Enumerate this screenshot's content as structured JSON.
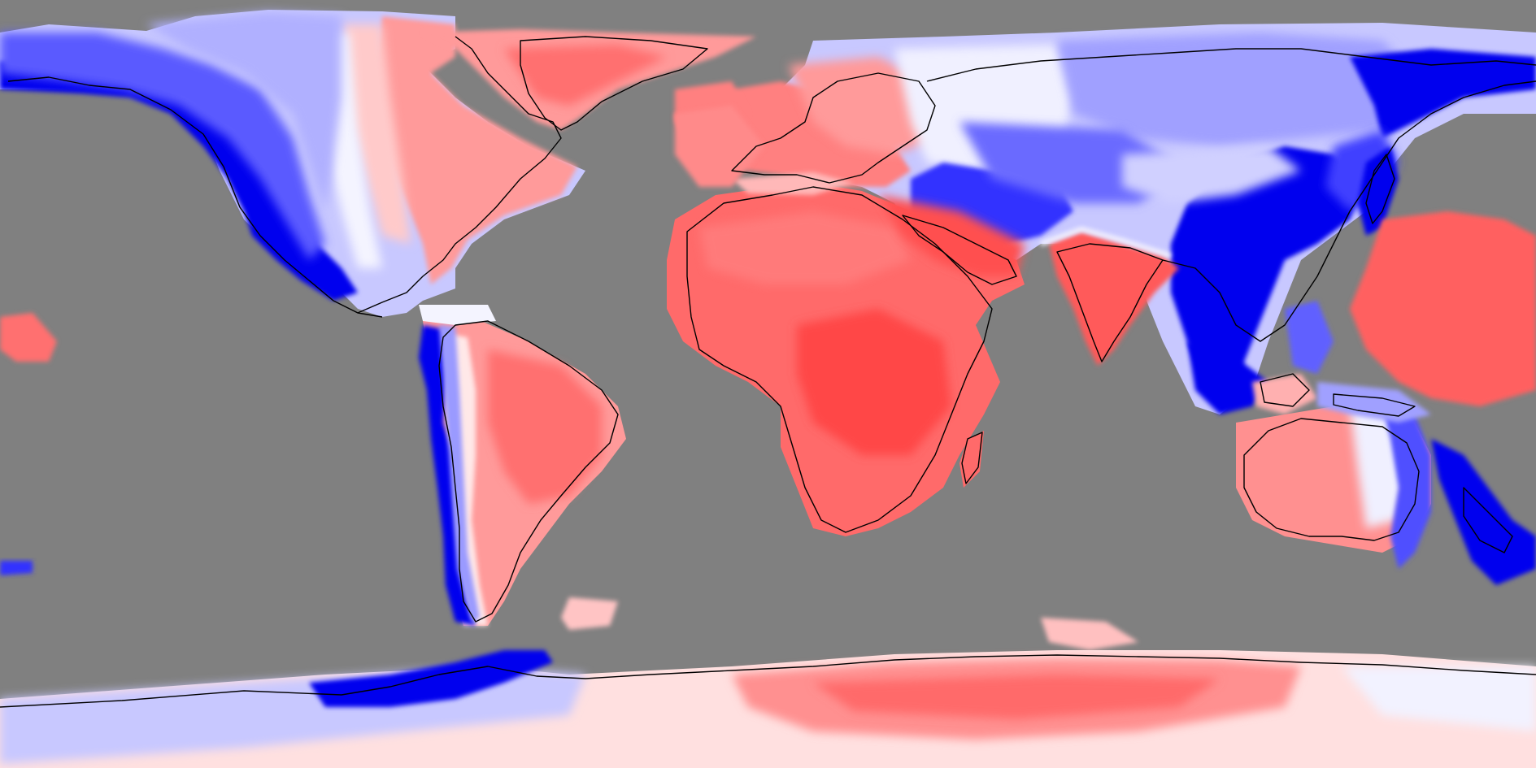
{
  "map": {
    "projection": "equirectangular",
    "ocean_color": "#808080",
    "coastline_color": "#000000",
    "palette": {
      "deep_blue": "#0000ee",
      "mid_blue": "#5a5aff",
      "light_blue": "#b4b4ff",
      "near_white_blue": "#ececff",
      "near_white_red": "#ffecec",
      "light_red": "#ffb0b0",
      "mid_red": "#ff7a7a",
      "strong_red": "#ff4a4a"
    }
  }
}
